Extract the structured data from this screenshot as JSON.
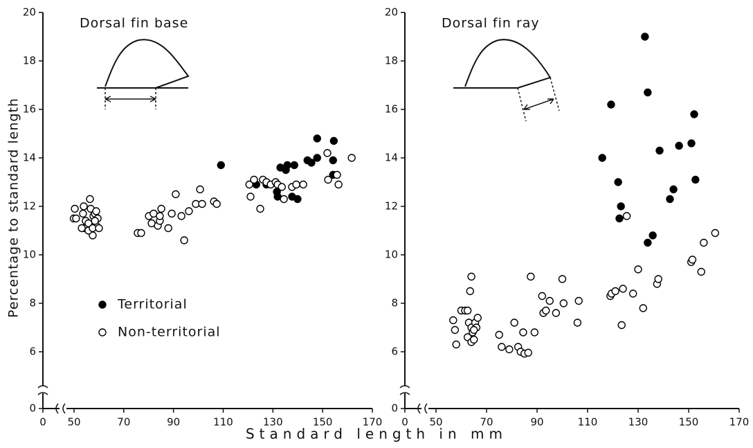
{
  "chart_data": [
    {
      "type": "scatter",
      "title": "Dorsal fin base",
      "ylabel": "Percentage to standard length",
      "xlim": [
        0,
        170
      ],
      "ylim": [
        0,
        20
      ],
      "xticks": [
        0,
        50,
        70,
        90,
        110,
        130,
        150,
        170
      ],
      "yticks": [
        0,
        6,
        8,
        10,
        12,
        14,
        16,
        18,
        20
      ],
      "axis_break": true,
      "grid": false,
      "legend": "center left",
      "series": [
        {
          "name": "Territorial",
          "color": "#000000",
          "marker": "filled",
          "x": [
            109.1,
            123.3,
            127.4,
            131.6,
            131.9,
            133.0,
            135.2,
            135.8,
            137.7,
            138.6,
            139.9,
            147.8,
            143.9,
            145.5,
            147.8,
            154.2,
            154.5,
            154.2
          ],
          "y": [
            13.7,
            12.9,
            12.9,
            12.6,
            12.4,
            13.6,
            13.5,
            13.7,
            12.4,
            13.7,
            12.3,
            14.8,
            13.9,
            13.8,
            14.0,
            13.9,
            14.7,
            13.3
          ]
        },
        {
          "name": "Non-territorial",
          "color": "#000000",
          "marker": "open",
          "x": [
            50.3,
            49.5,
            50.8,
            53.9,
            53.6,
            54.7,
            54.2,
            56.4,
            56.7,
            55.8,
            57.8,
            58.4,
            58.9,
            57.5,
            53.1,
            55.8,
            58.9,
            57.5,
            60.0,
            59.5,
            58.4,
            75.6,
            77.0,
            80.1,
            81.2,
            83.7,
            82.0,
            84.5,
            85.1,
            84.5,
            87.9,
            89.3,
            90.9,
            93.2,
            94.3,
            96.2,
            99.0,
            100.7,
            101.5,
            106.3,
            107.4,
            120.5,
            121.0,
            122.4,
            124.9,
            126.0,
            127.4,
            129.1,
            131.1,
            131.9,
            133.6,
            134.4,
            137.7,
            139.4,
            142.2,
            152.2,
            151.9,
            155.8,
            156.4,
            161.7
          ],
          "y": [
            11.9,
            11.5,
            11.5,
            12.0,
            11.7,
            11.4,
            11.1,
            12.3,
            11.9,
            11.3,
            11.6,
            11.7,
            11.2,
            10.8,
            11.1,
            11.0,
            11.8,
            11.1,
            11.1,
            11.5,
            11.4,
            10.9,
            10.9,
            11.6,
            11.3,
            11.2,
            11.7,
            11.4,
            11.9,
            11.6,
            11.1,
            11.7,
            12.5,
            11.6,
            10.6,
            11.8,
            12.1,
            12.7,
            12.1,
            12.2,
            12.1,
            12.9,
            12.4,
            13.1,
            11.9,
            13.1,
            13.0,
            12.9,
            13.0,
            12.9,
            12.8,
            12.3,
            12.8,
            12.9,
            12.9,
            13.1,
            14.2,
            13.3,
            12.9,
            14.0
          ]
        }
      ]
    },
    {
      "type": "scatter",
      "title": "Dorsal fin ray",
      "xlim": [
        0,
        170
      ],
      "ylim": [
        0,
        20
      ],
      "xticks": [
        0,
        50,
        70,
        90,
        110,
        130,
        150,
        170
      ],
      "yticks": [
        0,
        6,
        8,
        10,
        12,
        14,
        16,
        18,
        20
      ],
      "axis_break": true,
      "grid": false,
      "series": [
        {
          "color": "#000000",
          "marker": "filled",
          "x": [
            115.8,
            119.3,
            122.1,
            123.2,
            122.6,
            132.7,
            133.8,
            133.8,
            135.8,
            138.5,
            142.6,
            144.0,
            146.2,
            151.1,
            152.2,
            152.7
          ],
          "y": [
            14.0,
            16.2,
            13.0,
            12.0,
            11.5,
            19.0,
            16.7,
            10.5,
            10.8,
            14.3,
            12.3,
            12.7,
            14.5,
            14.6,
            15.8,
            13.1
          ]
        },
        {
          "color": "#000000",
          "marker": "open",
          "x": [
            56.8,
            57.5,
            58.0,
            60.0,
            61.5,
            62.5,
            62.5,
            63.0,
            63.5,
            64.0,
            64.0,
            64.0,
            64.5,
            65.0,
            65.5,
            66.0,
            66.5,
            65.0,
            75.0,
            76.0,
            79.0,
            81.0,
            82.5,
            83.5,
            84.5,
            85.0,
            86.5,
            87.5,
            89.0,
            92.0,
            92.5,
            93.5,
            95.0,
            97.5,
            100.0,
            100.5,
            106.0,
            106.5,
            119.0,
            119.5,
            121.0,
            123.5,
            124.0,
            125.5,
            128.0,
            130.0,
            132.0,
            137.5,
            138.0,
            151.0,
            151.5,
            155.0,
            156.0,
            160.5
          ],
          "y": [
            7.3,
            6.9,
            6.3,
            7.7,
            7.7,
            7.7,
            6.6,
            7.2,
            8.5,
            9.1,
            7.0,
            6.4,
            6.8,
            6.5,
            7.2,
            7.0,
            7.4,
            6.9,
            6.7,
            6.2,
            6.1,
            7.2,
            6.2,
            6.0,
            6.8,
            5.8,
            5.9,
            9.1,
            6.8,
            8.3,
            7.6,
            7.7,
            8.1,
            7.6,
            9.0,
            8.0,
            7.2,
            8.1,
            8.3,
            8.4,
            8.5,
            7.1,
            8.6,
            11.6,
            8.4,
            9.4,
            7.8,
            8.8,
            9.0,
            9.7,
            9.8,
            9.3,
            10.5,
            10.9
          ]
        }
      ]
    }
  ],
  "xlabel": "Standard length in mm"
}
